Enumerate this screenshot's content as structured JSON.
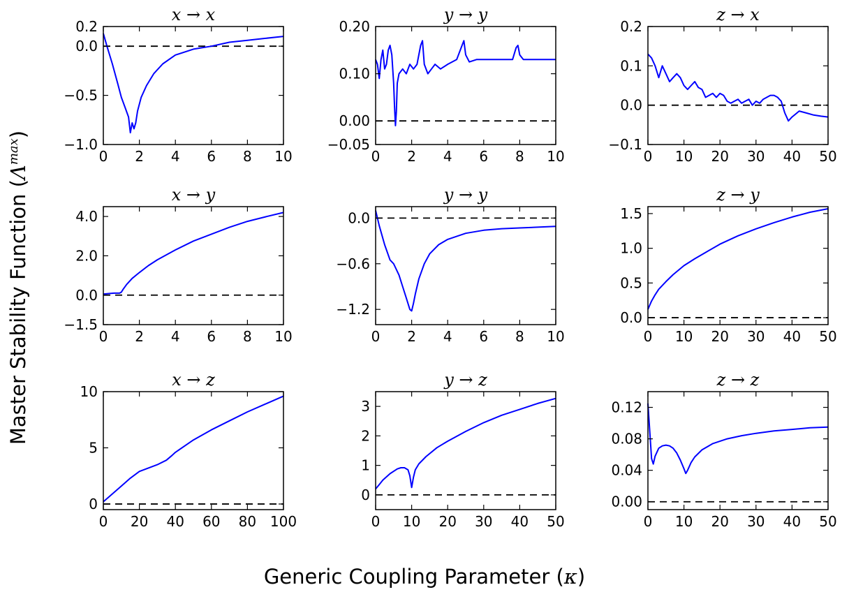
{
  "figure": {
    "xlabel_prefix": "Generic Coupling Parameter (",
    "xlabel_symbol": "κ",
    "xlabel_suffix": ")",
    "ylabel_prefix": "Master Stability Function (",
    "ylabel_symbol": "Λ",
    "ylabel_sup": "max",
    "ylabel_suffix": ")",
    "line_color": "#0000ff",
    "reference_line_color": "#000000",
    "grid": false
  },
  "chart_data": [
    {
      "type": "line",
      "title": "x → x",
      "xlim": [
        0,
        10
      ],
      "ylim": [
        -1.0,
        0.2
      ],
      "xticks": [
        0,
        2,
        4,
        6,
        8,
        10
      ],
      "xticklabels": [
        "0",
        "2",
        "4",
        "6",
        "8",
        "10"
      ],
      "yticks": [
        -1.0,
        -0.5,
        0.0,
        0.2
      ],
      "yticklabels": [
        "−1.0",
        "−0.5",
        "0.0",
        "0.2"
      ],
      "reference_line": 0,
      "x": [
        0,
        0.2,
        0.5,
        0.8,
        1.0,
        1.2,
        1.4,
        1.5,
        1.6,
        1.7,
        1.8,
        1.9,
        2.1,
        2.4,
        2.8,
        3.3,
        4.0,
        5.0,
        6.0,
        7.0,
        8.0,
        9.0,
        10.0
      ],
      "y": [
        0.13,
        0.0,
        -0.18,
        -0.38,
        -0.52,
        -0.62,
        -0.72,
        -0.88,
        -0.78,
        -0.84,
        -0.78,
        -0.66,
        -0.52,
        -0.4,
        -0.28,
        -0.18,
        -0.09,
        -0.03,
        0.0,
        0.04,
        0.06,
        0.08,
        0.1
      ]
    },
    {
      "type": "line",
      "title": "y → y",
      "xlim": [
        0,
        10
      ],
      "ylim": [
        -0.05,
        0.2
      ],
      "xticks": [
        0,
        2,
        4,
        6,
        8,
        10
      ],
      "xticklabels": [
        "0",
        "2",
        "4",
        "6",
        "8",
        "10"
      ],
      "yticks": [
        -0.05,
        0.0,
        0.1,
        0.2
      ],
      "yticklabels": [
        "−0.05",
        "0.00",
        "0.10",
        "0.20"
      ],
      "reference_line": 0,
      "x": [
        0,
        0.1,
        0.2,
        0.3,
        0.4,
        0.5,
        0.6,
        0.7,
        0.8,
        0.9,
        1.0,
        1.05,
        1.1,
        1.15,
        1.2,
        1.3,
        1.5,
        1.7,
        1.9,
        2.1,
        2.3,
        2.5,
        2.6,
        2.7,
        2.9,
        3.1,
        3.3,
        3.6,
        4.0,
        4.5,
        4.8,
        4.9,
        5.0,
        5.2,
        5.6,
        6.2,
        7.0,
        7.6,
        7.8,
        7.9,
        8.0,
        8.2,
        9.0,
        10.0
      ],
      "y": [
        0.13,
        0.12,
        0.09,
        0.13,
        0.15,
        0.11,
        0.12,
        0.15,
        0.16,
        0.14,
        0.08,
        0.03,
        -0.01,
        0.02,
        0.08,
        0.1,
        0.11,
        0.1,
        0.12,
        0.11,
        0.12,
        0.16,
        0.17,
        0.12,
        0.1,
        0.11,
        0.12,
        0.11,
        0.12,
        0.13,
        0.16,
        0.17,
        0.14,
        0.125,
        0.13,
        0.13,
        0.13,
        0.13,
        0.155,
        0.16,
        0.14,
        0.13,
        0.13,
        0.13
      ]
    },
    {
      "type": "line",
      "title": "z → x",
      "xlim": [
        0,
        50
      ],
      "ylim": [
        -0.1,
        0.2
      ],
      "xticks": [
        0,
        10,
        20,
        30,
        40,
        50
      ],
      "xticklabels": [
        "0",
        "10",
        "20",
        "30",
        "40",
        "50"
      ],
      "yticks": [
        -0.1,
        0.0,
        0.1,
        0.2
      ],
      "yticklabels": [
        "−0.1",
        "0.0",
        "0.1",
        "0.2"
      ],
      "reference_line": 0,
      "x": [
        0,
        1,
        2,
        3,
        4,
        5,
        6,
        7,
        8,
        9,
        10,
        11,
        12,
        13,
        14,
        15,
        16,
        17,
        18,
        19,
        20,
        21,
        22,
        23,
        24,
        25,
        26,
        27,
        28,
        29,
        30,
        31,
        32,
        33,
        34,
        35,
        36,
        37,
        38,
        39,
        40,
        42,
        44,
        46,
        48,
        50
      ],
      "y": [
        0.13,
        0.12,
        0.1,
        0.07,
        0.1,
        0.08,
        0.06,
        0.07,
        0.08,
        0.07,
        0.05,
        0.04,
        0.05,
        0.06,
        0.045,
        0.04,
        0.02,
        0.025,
        0.03,
        0.02,
        0.03,
        0.025,
        0.01,
        0.005,
        0.01,
        0.015,
        0.005,
        0.01,
        0.015,
        0.0,
        0.01,
        0.005,
        0.015,
        0.02,
        0.025,
        0.025,
        0.02,
        0.01,
        -0.02,
        -0.04,
        -0.03,
        -0.015,
        -0.02,
        -0.025,
        -0.028,
        -0.03
      ]
    },
    {
      "type": "line",
      "title": "x → y",
      "xlim": [
        0,
        10
      ],
      "ylim": [
        -1.5,
        4.5
      ],
      "xticks": [
        0,
        2,
        4,
        6,
        8,
        10
      ],
      "xticklabels": [
        "0",
        "2",
        "4",
        "6",
        "8",
        "10"
      ],
      "yticks": [
        -1.5,
        0.0,
        2.0,
        4.0
      ],
      "yticklabels": [
        "−1.5",
        "0.0",
        "2.0",
        "4.0"
      ],
      "reference_line": 0,
      "x": [
        0,
        0.3,
        0.6,
        0.9,
        1.0,
        1.1,
        1.3,
        1.6,
        2.0,
        2.5,
        3.0,
        4.0,
        5.0,
        6.0,
        7.0,
        8.0,
        9.0,
        10.0
      ],
      "y": [
        0.05,
        0.08,
        0.1,
        0.1,
        0.15,
        0.3,
        0.55,
        0.85,
        1.15,
        1.5,
        1.8,
        2.3,
        2.75,
        3.1,
        3.45,
        3.75,
        3.98,
        4.2
      ]
    },
    {
      "type": "line",
      "title": "y → y",
      "xlim": [
        0,
        10
      ],
      "ylim": [
        -1.4,
        0.15
      ],
      "xticks": [
        0,
        2,
        4,
        6,
        8,
        10
      ],
      "xticklabels": [
        "0",
        "2",
        "4",
        "6",
        "8",
        "10"
      ],
      "yticks": [
        -1.2,
        -0.6,
        0.0
      ],
      "yticklabels": [
        "−1.2",
        "−0.6",
        "0.0"
      ],
      "reference_line": 0,
      "x": [
        0,
        0.2,
        0.5,
        0.8,
        1.0,
        1.3,
        1.5,
        1.7,
        1.9,
        2.0,
        2.1,
        2.2,
        2.4,
        2.7,
        3.0,
        3.5,
        4.0,
        5.0,
        6.0,
        7.0,
        8.0,
        9.0,
        10.0
      ],
      "y": [
        0.1,
        -0.1,
        -0.35,
        -0.55,
        -0.6,
        -0.75,
        -0.9,
        -1.05,
        -1.2,
        -1.22,
        -1.12,
        -1.0,
        -0.8,
        -0.6,
        -0.47,
        -0.35,
        -0.28,
        -0.2,
        -0.16,
        -0.14,
        -0.13,
        -0.12,
        -0.11
      ]
    },
    {
      "type": "line",
      "title": "z → y",
      "xlim": [
        0,
        50
      ],
      "ylim": [
        -0.1,
        1.6
      ],
      "xticks": [
        0,
        10,
        20,
        30,
        40,
        50
      ],
      "xticklabels": [
        "0",
        "10",
        "20",
        "30",
        "40",
        "50"
      ],
      "yticks": [
        0.0,
        0.5,
        1.0,
        1.5
      ],
      "yticklabels": [
        "0.0",
        "0.5",
        "1.0",
        "1.5"
      ],
      "reference_line": 0,
      "x": [
        0,
        1,
        2,
        3,
        5,
        7,
        10,
        13,
        16,
        20,
        25,
        30,
        35,
        40,
        45,
        50
      ],
      "y": [
        0.12,
        0.24,
        0.33,
        0.41,
        0.52,
        0.62,
        0.75,
        0.85,
        0.94,
        1.06,
        1.18,
        1.28,
        1.37,
        1.45,
        1.52,
        1.57
      ]
    },
    {
      "type": "line",
      "title": "x → z",
      "xlim": [
        0,
        100
      ],
      "ylim": [
        -0.5,
        10
      ],
      "xticks": [
        0,
        20,
        40,
        60,
        80,
        100
      ],
      "xticklabels": [
        "0",
        "20",
        "40",
        "60",
        "80",
        "100"
      ],
      "yticks": [
        0,
        5,
        10
      ],
      "yticklabels": [
        "0",
        "5",
        "10"
      ],
      "reference_line": 0,
      "x": [
        0,
        5,
        10,
        15,
        20,
        25,
        30,
        35,
        38,
        40,
        50,
        60,
        70,
        80,
        90,
        100
      ],
      "y": [
        0.2,
        0.9,
        1.6,
        2.3,
        2.9,
        3.2,
        3.5,
        3.9,
        4.3,
        4.6,
        5.7,
        6.6,
        7.4,
        8.2,
        8.9,
        9.6
      ]
    },
    {
      "type": "line",
      "title": "y → z",
      "xlim": [
        0,
        50
      ],
      "ylim": [
        -0.5,
        3.5
      ],
      "xticks": [
        0,
        10,
        20,
        30,
        40,
        50
      ],
      "xticklabels": [
        "0",
        "10",
        "20",
        "30",
        "40",
        "50"
      ],
      "yticks": [
        0,
        1,
        2,
        3
      ],
      "yticklabels": [
        "0",
        "1",
        "2",
        "3"
      ],
      "reference_line": 0,
      "x": [
        0,
        1,
        2,
        4,
        6,
        7,
        8,
        9,
        9.5,
        10,
        10.5,
        11,
        12,
        14,
        17,
        20,
        25,
        30,
        35,
        40,
        45,
        50
      ],
      "y": [
        0.2,
        0.35,
        0.5,
        0.72,
        0.88,
        0.92,
        0.92,
        0.85,
        0.65,
        0.25,
        0.6,
        0.85,
        1.05,
        1.3,
        1.6,
        1.82,
        2.15,
        2.45,
        2.7,
        2.9,
        3.1,
        3.27
      ]
    },
    {
      "type": "line",
      "title": "z → z",
      "xlim": [
        0,
        50
      ],
      "ylim": [
        -0.01,
        0.14
      ],
      "xticks": [
        0,
        10,
        20,
        30,
        40,
        50
      ],
      "xticklabels": [
        "0",
        "10",
        "20",
        "30",
        "40",
        "50"
      ],
      "yticks": [
        0.0,
        0.04,
        0.08,
        0.12
      ],
      "yticklabels": [
        "0.00",
        "0.04",
        "0.08",
        "0.12"
      ],
      "reference_line": 0,
      "x": [
        0,
        0.5,
        1.0,
        1.5,
        2,
        3,
        4,
        5,
        6,
        7,
        8,
        9,
        10,
        10.5,
        11,
        12,
        13,
        15,
        18,
        22,
        26,
        30,
        35,
        40,
        45,
        50
      ],
      "y": [
        0.125,
        0.09,
        0.055,
        0.048,
        0.058,
        0.068,
        0.071,
        0.072,
        0.071,
        0.068,
        0.062,
        0.053,
        0.042,
        0.036,
        0.04,
        0.05,
        0.057,
        0.066,
        0.074,
        0.08,
        0.084,
        0.087,
        0.09,
        0.092,
        0.094,
        0.095
      ]
    }
  ]
}
